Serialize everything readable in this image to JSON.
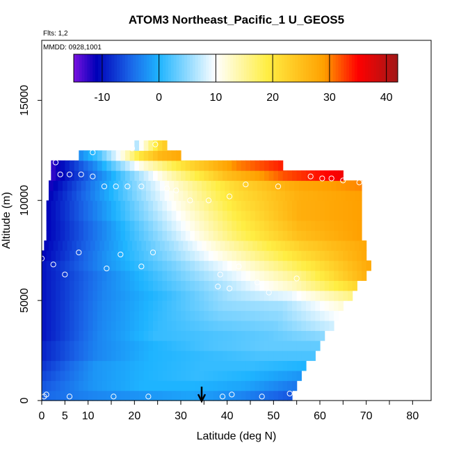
{
  "chart_data": {
    "type": "heatmap",
    "title": "ATOM3 Northeast_Pacific_1 U_GEOS5",
    "annotations": [
      "Flts: 1,2",
      "MMDD: 0928,1001"
    ],
    "xlabel": "Latitude (deg N)",
    "ylabel": "Altitude (m)",
    "xlim": [
      0,
      84
    ],
    "ylim": [
      0,
      18000
    ],
    "xticks": [
      0,
      5,
      10,
      20,
      30,
      40,
      50,
      60,
      70,
      80
    ],
    "xticks_minor": [
      15,
      25,
      35,
      45,
      55,
      65,
      75
    ],
    "yticks": [
      0,
      5000,
      10000,
      15000
    ],
    "colorbar": {
      "min": -15,
      "max": 42,
      "ticks": [
        -10,
        0,
        10,
        20,
        30,
        40
      ],
      "colors": [
        "#7a12e0",
        "#0000b8",
        "#1a66e8",
        "#1eb4ff",
        "#ffffff",
        "#ffee44",
        "#ffa000",
        "#ff0000",
        "#a01818"
      ],
      "stops": [
        -15,
        -11,
        -5,
        0,
        10,
        19,
        29,
        35,
        42
      ]
    },
    "profile_rows": [
      {
        "alt": 0,
        "w_start": 0,
        "w_end": 54,
        "vals": [
          -5,
          -3,
          -2,
          -1,
          -3,
          -6
        ]
      },
      {
        "alt": 500,
        "w_start": 0,
        "w_end": 55,
        "vals": [
          -6,
          -2,
          0,
          0,
          -1,
          -4
        ]
      },
      {
        "alt": 1000,
        "w_start": 0,
        "w_end": 56,
        "vals": [
          -7,
          -2,
          0,
          1,
          0,
          -2
        ]
      },
      {
        "alt": 1500,
        "w_start": 0,
        "w_end": 57,
        "vals": [
          -8,
          -2,
          0,
          1,
          1,
          0
        ]
      },
      {
        "alt": 2000,
        "w_start": 0,
        "w_end": 59,
        "vals": [
          -9,
          -3,
          0,
          1,
          2,
          2
        ]
      },
      {
        "alt": 2500,
        "w_start": 0,
        "w_end": 60,
        "vals": [
          -9,
          -3,
          0,
          2,
          3,
          3
        ]
      },
      {
        "alt": 3000,
        "w_start": 0,
        "w_end": 61,
        "vals": [
          -10,
          -3,
          1,
          2,
          3,
          5
        ]
      },
      {
        "alt": 3500,
        "w_start": 0,
        "w_end": 63,
        "vals": [
          -10,
          -3,
          1,
          3,
          4,
          8
        ]
      },
      {
        "alt": 4000,
        "w_start": 0,
        "w_end": 64,
        "vals": [
          -10,
          -3,
          1,
          4,
          5,
          10
        ]
      },
      {
        "alt": 4500,
        "w_start": 0,
        "w_end": 65,
        "vals": [
          -10,
          -3,
          1,
          5,
          6,
          12
        ]
      },
      {
        "alt": 5000,
        "w_start": 0,
        "w_end": 67,
        "vals": [
          -10,
          -3,
          1,
          6,
          9,
          16
        ]
      },
      {
        "alt": 5500,
        "w_start": 0,
        "w_end": 68,
        "vals": [
          -10,
          -3,
          2,
          7,
          13,
          22
        ]
      },
      {
        "alt": 6000,
        "w_start": 0,
        "w_end": 70,
        "vals": [
          -10,
          -3,
          3,
          9,
          16,
          27
        ]
      },
      {
        "alt": 6500,
        "w_start": 0,
        "w_end": 71,
        "vals": [
          -10,
          -2,
          4,
          11,
          19,
          28
        ]
      },
      {
        "alt": 7000,
        "w_start": 0,
        "w_end": 70,
        "vals": [
          -11,
          -2,
          5,
          13,
          21,
          28
        ]
      },
      {
        "alt": 7500,
        "w_start": 0.5,
        "w_end": 70,
        "vals": [
          -11,
          -2,
          6,
          15,
          23,
          28
        ]
      },
      {
        "alt": 8000,
        "w_start": 1,
        "w_end": 69,
        "vals": [
          -11,
          -2,
          7,
          17,
          25,
          29
        ]
      },
      {
        "alt": 8500,
        "w_start": 1,
        "w_end": 69,
        "vals": [
          -11,
          -2,
          8,
          18,
          26,
          29
        ]
      },
      {
        "alt": 9000,
        "w_start": 1,
        "w_end": 69,
        "vals": [
          -11,
          -1,
          9,
          19,
          27,
          29
        ]
      },
      {
        "alt": 9500,
        "w_start": 1,
        "w_end": 69,
        "vals": [
          -11,
          -1,
          10,
          20,
          27,
          29
        ]
      },
      {
        "alt": 10000,
        "w_start": 1.5,
        "w_end": 69,
        "vals": [
          -11,
          0,
          11,
          21,
          27,
          29
        ]
      },
      {
        "alt": 10500,
        "w_start": 1.5,
        "w_end": 69,
        "vals": [
          -12,
          0,
          12,
          22,
          28,
          30
        ]
      },
      {
        "alt": 11000,
        "w_start": 2,
        "w_end": 65,
        "vals": [
          -13,
          -1,
          13,
          25,
          32,
          36
        ]
      },
      {
        "alt": 11500,
        "w_start": 2,
        "w_end": 52,
        "vals": [
          -13,
          -2,
          12,
          22,
          30,
          34
        ]
      },
      {
        "alt": 12000,
        "w_start": 8,
        "w_end": 30,
        "vals": [
          -3,
          2,
          10,
          20,
          26,
          28
        ]
      },
      {
        "alt": 12500,
        "w_start": 20,
        "w_end": 27,
        "vals": [
          5,
          10,
          14,
          18,
          22,
          24
        ]
      }
    ],
    "flight_points": [
      {
        "lat": 0.5,
        "alt": 200
      },
      {
        "lat": 1,
        "alt": 300
      },
      {
        "lat": 6,
        "alt": 200
      },
      {
        "lat": 15.5,
        "alt": 200
      },
      {
        "lat": 23,
        "alt": 200
      },
      {
        "lat": 39,
        "alt": 200
      },
      {
        "lat": 41,
        "alt": 300
      },
      {
        "lat": 47.5,
        "alt": 200
      },
      {
        "lat": 53.5,
        "alt": 350
      },
      {
        "lat": 0,
        "alt": 7100
      },
      {
        "lat": 2.5,
        "alt": 6800
      },
      {
        "lat": 5,
        "alt": 6300
      },
      {
        "lat": 8,
        "alt": 7400
      },
      {
        "lat": 14,
        "alt": 6600
      },
      {
        "lat": 17,
        "alt": 7300
      },
      {
        "lat": 21.5,
        "alt": 6700
      },
      {
        "lat": 24,
        "alt": 7400
      },
      {
        "lat": 38.5,
        "alt": 6300
      },
      {
        "lat": 38,
        "alt": 5700
      },
      {
        "lat": 40.5,
        "alt": 5600
      },
      {
        "lat": 42.5,
        "alt": 6700
      },
      {
        "lat": 46.5,
        "alt": 5900
      },
      {
        "lat": 49,
        "alt": 5400
      },
      {
        "lat": 55,
        "alt": 6100
      },
      {
        "lat": 71,
        "alt": 6200
      },
      {
        "lat": 3,
        "alt": 11900
      },
      {
        "lat": 4,
        "alt": 11300
      },
      {
        "lat": 6,
        "alt": 11300
      },
      {
        "lat": 8.5,
        "alt": 11300
      },
      {
        "lat": 11,
        "alt": 11200
      },
      {
        "lat": 11,
        "alt": 12400
      },
      {
        "lat": 13.5,
        "alt": 10700
      },
      {
        "lat": 16,
        "alt": 10700
      },
      {
        "lat": 18.5,
        "alt": 10700
      },
      {
        "lat": 19.5,
        "alt": 12600
      },
      {
        "lat": 21.5,
        "alt": 10700
      },
      {
        "lat": 24.5,
        "alt": 12800
      },
      {
        "lat": 27,
        "alt": 10600
      },
      {
        "lat": 29,
        "alt": 10500
      },
      {
        "lat": 32,
        "alt": 10000
      },
      {
        "lat": 36,
        "alt": 10000
      },
      {
        "lat": 40.5,
        "alt": 10200
      },
      {
        "lat": 51,
        "alt": 10700
      },
      {
        "lat": 58,
        "alt": 11200
      },
      {
        "lat": 60.5,
        "alt": 11100
      },
      {
        "lat": 62.5,
        "alt": 11100
      },
      {
        "lat": 65,
        "alt": 11000
      },
      {
        "lat": 68.5,
        "alt": 10900
      },
      {
        "lat": 44,
        "alt": 10800
      }
    ],
    "marker_arrow": {
      "lat": 34.5
    }
  }
}
